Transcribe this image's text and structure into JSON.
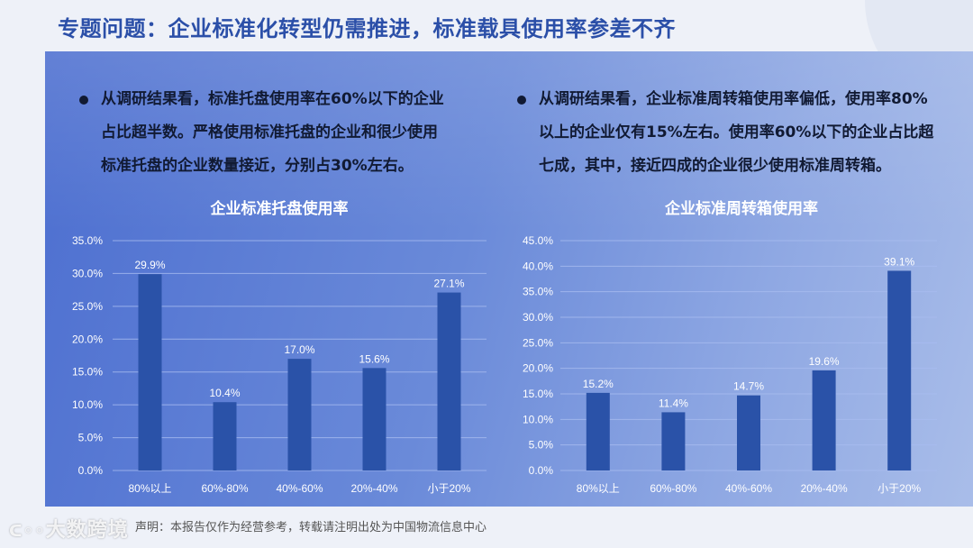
{
  "title": "专题问题：企业标准化转型仍需推进，标准载具使用率参差不齐",
  "left": {
    "bullet": [
      "从调研结果看，标准托盘使用率在60%以下的企业",
      "占比超半数。严格使用标准托盘的企业和很少使用",
      "标准托盘的企业数量接近，分别占30%左右。"
    ]
  },
  "right": {
    "bullet": [
      "从调研结果看，企业标准周转箱使用率偏低，使用率80%",
      "以上的企业仅有15%左右。使用率60%以下的企业占比超",
      "七成，其中，接近四成的企业很少使用标准周转箱。"
    ]
  },
  "footer": "声明：本报告仅作为经营参考，转载请注明出处为中国物流信息中心",
  "watermark": "大数跨境",
  "colors": {
    "bar": "#2a52a8",
    "title": "#2b4fa8",
    "grid": "#a9bdf0"
  },
  "chart_data": [
    {
      "type": "bar",
      "title": "企业标准托盘使用率",
      "categories": [
        "80%以上",
        "60%-80%",
        "40%-60%",
        "20%-40%",
        "小于20%"
      ],
      "values": [
        29.9,
        10.4,
        17.0,
        15.6,
        27.1
      ],
      "data_labels": [
        "29.9%",
        "10.4%",
        "17.0%",
        "15.6%",
        "27.1%"
      ],
      "ylim": [
        0,
        35
      ],
      "yticks": [
        "0.0%",
        "5.0%",
        "10.0%",
        "15.0%",
        "20.0%",
        "25.0%",
        "30.0%",
        "35.0%"
      ],
      "grid": true
    },
    {
      "type": "bar",
      "title": "企业标准周转箱使用率",
      "categories": [
        "80%以上",
        "60%-80%",
        "40%-60%",
        "20%-40%",
        "小于20%"
      ],
      "values": [
        15.2,
        11.4,
        14.7,
        19.6,
        39.1
      ],
      "data_labels": [
        "15.2%",
        "11.4%",
        "14.7%",
        "19.6%",
        "39.1%"
      ],
      "ylim": [
        0,
        45
      ],
      "yticks": [
        "0.0%",
        "5.0%",
        "10.0%",
        "15.0%",
        "20.0%",
        "25.0%",
        "30.0%",
        "35.0%",
        "40.0%",
        "45.0%"
      ],
      "grid": true
    }
  ]
}
